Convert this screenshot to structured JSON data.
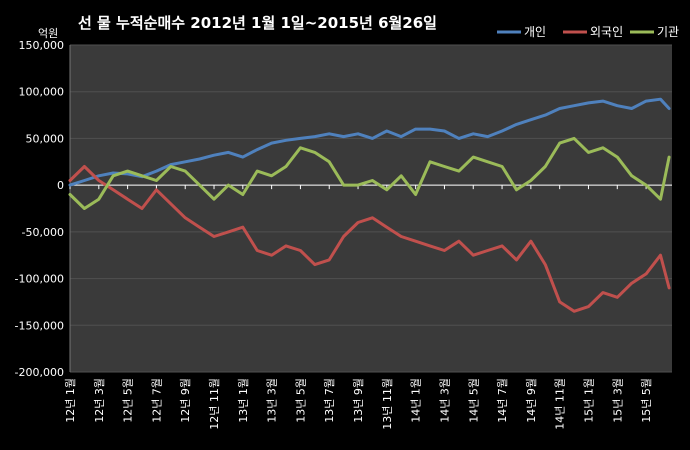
{
  "chart_data": {
    "type": "line",
    "title": "선 물 누적순매수 2012년 1월 1일~2015년 6월26일",
    "ylabel": "억원",
    "xlabel": "",
    "ylim": [
      -200000,
      150000
    ],
    "yticks": [
      150000,
      100000,
      50000,
      0,
      -50000,
      -100000,
      -150000,
      -200000
    ],
    "ytick_labels": [
      "150,000",
      "100,000",
      "50,000",
      "0",
      "-50,000",
      "-100,000",
      "-150,000",
      "-200,000"
    ],
    "grid": "horizontal",
    "legend_position": "top-right",
    "background": "#000000",
    "plot_background": "#3a3a3a",
    "x_labels": [
      "12년 1월",
      "12년 3월",
      "12년 5월",
      "12년 7월",
      "12년 9월",
      "12년 11월",
      "13년 1월",
      "13년 3월",
      "13년 5월",
      "13년 7월",
      "13년 9월",
      "13년 11월",
      "14년 1월",
      "14년 3월",
      "14년 5월",
      "14년 7월",
      "14년 9월",
      "14년 11월",
      "15년 1월",
      "15년 3월",
      "15년 5월"
    ],
    "x": [
      0,
      0.5,
      1,
      1.5,
      2,
      2.5,
      3,
      3.5,
      4,
      4.5,
      5,
      5.5,
      6,
      6.5,
      7,
      7.5,
      8,
      8.5,
      9,
      9.5,
      10,
      10.5,
      11,
      11.5,
      12,
      12.5,
      13,
      13.5,
      14,
      14.5,
      15,
      15.5,
      16,
      16.5,
      17,
      17.5,
      18,
      18.5,
      19,
      19.5,
      20,
      20.5,
      20.8
    ],
    "series": [
      {
        "name": "개인",
        "color": "#4f81bd",
        "values": [
          0,
          5000,
          10000,
          13000,
          12000,
          9000,
          15000,
          22000,
          25000,
          28000,
          32000,
          35000,
          30000,
          38000,
          45000,
          48000,
          50000,
          52000,
          55000,
          52000,
          55000,
          50000,
          58000,
          52000,
          60000,
          60000,
          58000,
          50000,
          55000,
          52000,
          58000,
          65000,
          70000,
          75000,
          82000,
          85000,
          88000,
          90000,
          85000,
          82000,
          90000,
          92000,
          82000
        ]
      },
      {
        "name": "외국인",
        "color": "#c0504d",
        "values": [
          5000,
          20000,
          5000,
          -5000,
          -15000,
          -25000,
          -5000,
          -20000,
          -35000,
          -45000,
          -55000,
          -50000,
          -45000,
          -70000,
          -75000,
          -65000,
          -70000,
          -85000,
          -80000,
          -55000,
          -40000,
          -35000,
          -45000,
          -55000,
          -60000,
          -65000,
          -70000,
          -60000,
          -75000,
          -70000,
          -65000,
          -80000,
          -60000,
          -85000,
          -125000,
          -135000,
          -130000,
          -115000,
          -120000,
          -105000,
          -95000,
          -75000,
          -110000
        ]
      },
      {
        "name": "기관",
        "color": "#9bbb59",
        "values": [
          -10000,
          -25000,
          -15000,
          10000,
          15000,
          10000,
          5000,
          20000,
          15000,
          0,
          -15000,
          0,
          -10000,
          15000,
          10000,
          20000,
          40000,
          35000,
          25000,
          0,
          0,
          5000,
          -5000,
          10000,
          -10000,
          25000,
          20000,
          15000,
          30000,
          25000,
          20000,
          -5000,
          5000,
          20000,
          45000,
          50000,
          35000,
          40000,
          30000,
          10000,
          0,
          -15000,
          30000
        ]
      }
    ]
  }
}
